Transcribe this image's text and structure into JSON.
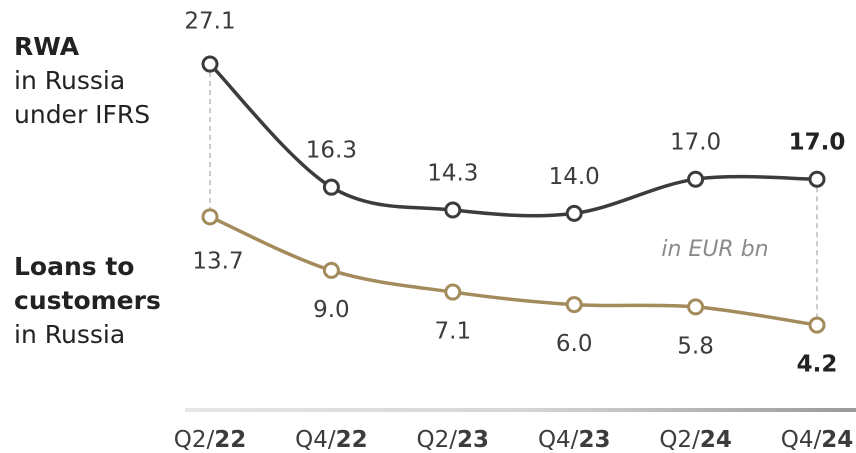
{
  "chart_data": {
    "type": "line",
    "annotation": "in EUR bn",
    "categories": [
      "Q2/22",
      "Q4/22",
      "Q2/23",
      "Q4/23",
      "Q2/24",
      "Q4/24"
    ],
    "ylim": [
      0,
      30
    ],
    "series": [
      {
        "name": "RWA",
        "note": [
          "in Russia",
          "under IFRS"
        ],
        "color": "#3c3c3c",
        "values": [
          27.1,
          16.3,
          14.3,
          14.0,
          17.0,
          17.0
        ],
        "value_labels": [
          "27.1",
          "16.3",
          "14.3",
          "14.0",
          "17.0",
          "17.0"
        ]
      },
      {
        "name": "Loans to customers",
        "note": [
          "in Russia"
        ],
        "color": "#a38b5c",
        "values": [
          13.7,
          9.0,
          7.1,
          6.0,
          5.8,
          4.2
        ],
        "value_labels": [
          "13.7",
          "9.0",
          "7.1",
          "6.0",
          "5.8",
          "4.2"
        ]
      }
    ]
  }
}
